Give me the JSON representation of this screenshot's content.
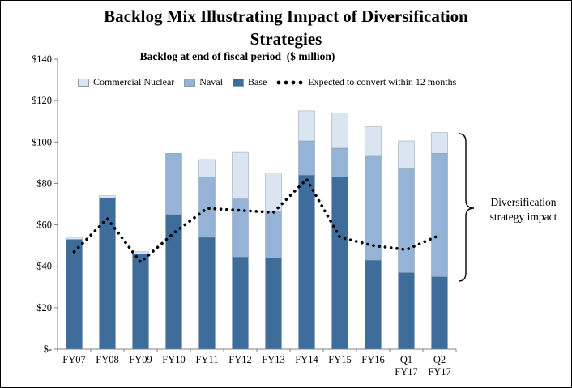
{
  "title": "Backlog Mix Illustrating Impact of Diversification Strategies",
  "subtitle": "Backlog at end of fiscal period  ($ million)",
  "annotation": "Diversification strategy impact",
  "legend": {
    "commercial_nuclear": "Commercial Nuclear",
    "naval": "Naval",
    "base": "Base",
    "line": "Expected to convert within 12 months"
  },
  "chart_data": {
    "type": "bar",
    "stacked": true,
    "title": "Backlog Mix Illustrating Impact of Diversification Strategies",
    "subtitle": "Backlog at end of fiscal period ($ million)",
    "categories": [
      "FY07",
      "FY08",
      "FY09",
      "FY10",
      "FY11",
      "FY12",
      "FY13",
      "FY14",
      "FY15",
      "FY16",
      "Q1 FY17",
      "Q2 FY17"
    ],
    "series": [
      {
        "name": "Base",
        "color": "#3e6d9c",
        "values": [
          53,
          73,
          46,
          65,
          54,
          44.5,
          44,
          84,
          83,
          43,
          37,
          35
        ]
      },
      {
        "name": "Naval",
        "color": "#95b3d7",
        "values": [
          0,
          0,
          0,
          29.5,
          29,
          28,
          22.5,
          16.5,
          14,
          50.5,
          50,
          59.5
        ]
      },
      {
        "name": "Commercial Nuclear",
        "color": "#dbe5f1",
        "values": [
          1,
          1,
          1,
          0,
          8.5,
          22.5,
          18.5,
          14.5,
          17,
          14,
          13.5,
          10
        ]
      }
    ],
    "line_series": {
      "name": "Expected to convert within 12 months",
      "color": "#000000",
      "values": [
        47,
        63,
        42,
        56,
        68,
        67,
        66,
        82,
        54,
        50,
        48,
        55
      ]
    },
    "ylim": [
      0,
      140
    ],
    "ytick_step": 20,
    "ytick_labels": [
      "$-",
      "$20",
      "$40",
      "$60",
      "$80",
      "$100",
      "$120",
      "$140"
    ],
    "legend_position": "top-inside",
    "grid": false,
    "annotation": "Diversification strategy impact"
  }
}
